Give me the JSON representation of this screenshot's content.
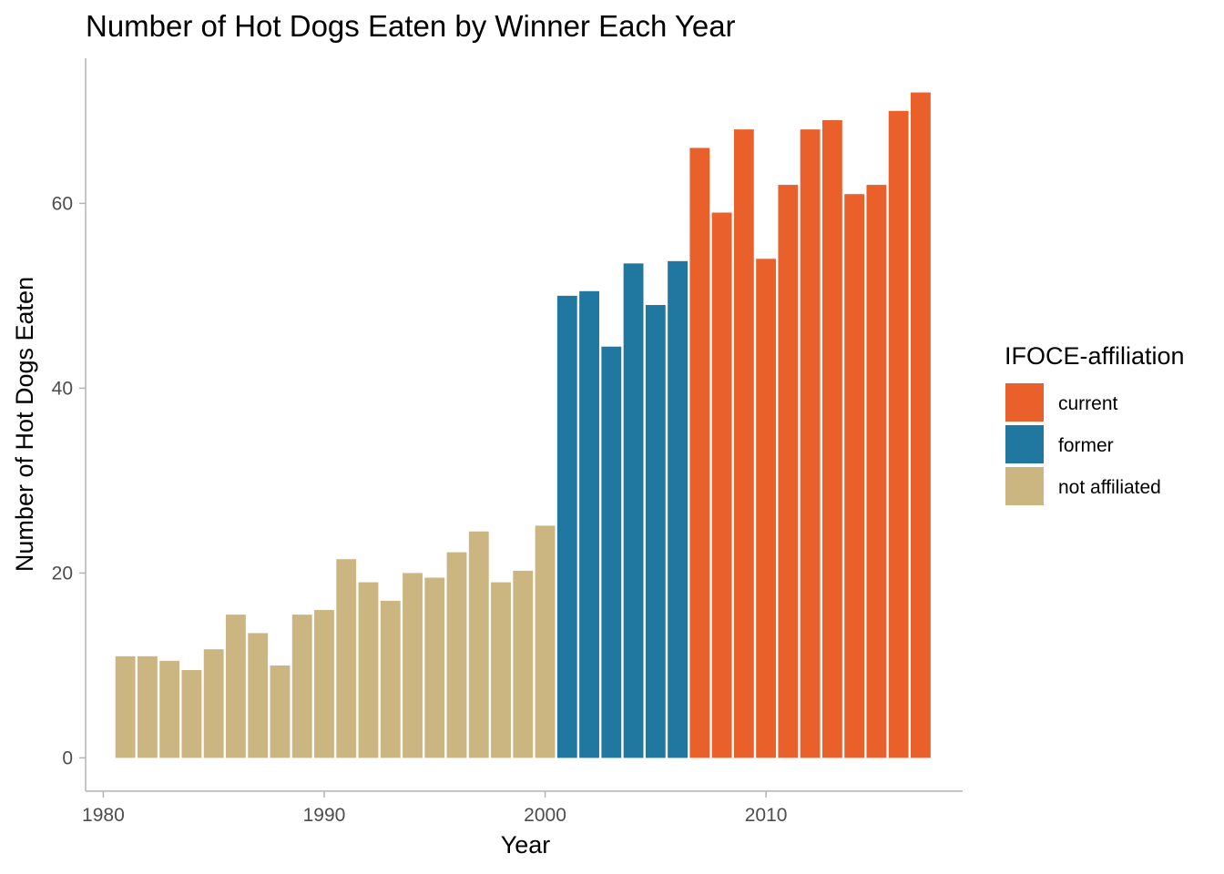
{
  "chart_data": {
    "type": "bar",
    "title": "Number of Hot Dogs Eaten by Winner Each Year",
    "xlabel": "Year",
    "ylabel": "Number of Hot Dogs Eaten",
    "xlim": [
      1979.2,
      2018.9
    ],
    "ylim": [
      -3.6,
      75.7
    ],
    "x_ticks": [
      1980,
      1990,
      2000,
      2010
    ],
    "y_ticks": [
      0,
      20,
      40,
      60
    ],
    "grid": false,
    "legend": {
      "title": "IFOCE-affiliation",
      "position": "right",
      "entries": [
        {
          "name": "current",
          "color": "#E9602B"
        },
        {
          "name": "former",
          "color": "#2077A0"
        },
        {
          "name": "not affiliated",
          "color": "#CBB580"
        }
      ]
    },
    "data": [
      {
        "year": 1981,
        "value": 11,
        "group": "not affiliated"
      },
      {
        "year": 1982,
        "value": 11,
        "group": "not affiliated"
      },
      {
        "year": 1983,
        "value": 10.5,
        "group": "not affiliated"
      },
      {
        "year": 1984,
        "value": 9.5,
        "group": "not affiliated"
      },
      {
        "year": 1985,
        "value": 11.75,
        "group": "not affiliated"
      },
      {
        "year": 1986,
        "value": 15.5,
        "group": "not affiliated"
      },
      {
        "year": 1987,
        "value": 13.5,
        "group": "not affiliated"
      },
      {
        "year": 1988,
        "value": 10,
        "group": "not affiliated"
      },
      {
        "year": 1989,
        "value": 15.5,
        "group": "not affiliated"
      },
      {
        "year": 1990,
        "value": 16,
        "group": "not affiliated"
      },
      {
        "year": 1991,
        "value": 21.5,
        "group": "not affiliated"
      },
      {
        "year": 1992,
        "value": 19,
        "group": "not affiliated"
      },
      {
        "year": 1993,
        "value": 17,
        "group": "not affiliated"
      },
      {
        "year": 1994,
        "value": 20,
        "group": "not affiliated"
      },
      {
        "year": 1995,
        "value": 19.5,
        "group": "not affiliated"
      },
      {
        "year": 1996,
        "value": 22.25,
        "group": "not affiliated"
      },
      {
        "year": 1997,
        "value": 24.5,
        "group": "not affiliated"
      },
      {
        "year": 1998,
        "value": 19,
        "group": "not affiliated"
      },
      {
        "year": 1999,
        "value": 20.25,
        "group": "not affiliated"
      },
      {
        "year": 2000,
        "value": 25.125,
        "group": "not affiliated"
      },
      {
        "year": 2001,
        "value": 50,
        "group": "former"
      },
      {
        "year": 2002,
        "value": 50.5,
        "group": "former"
      },
      {
        "year": 2003,
        "value": 44.5,
        "group": "former"
      },
      {
        "year": 2004,
        "value": 53.5,
        "group": "former"
      },
      {
        "year": 2005,
        "value": 49,
        "group": "former"
      },
      {
        "year": 2006,
        "value": 53.75,
        "group": "former"
      },
      {
        "year": 2007,
        "value": 66,
        "group": "current"
      },
      {
        "year": 2008,
        "value": 59,
        "group": "current"
      },
      {
        "year": 2009,
        "value": 68,
        "group": "current"
      },
      {
        "year": 2010,
        "value": 54,
        "group": "current"
      },
      {
        "year": 2011,
        "value": 62,
        "group": "current"
      },
      {
        "year": 2012,
        "value": 68,
        "group": "current"
      },
      {
        "year": 2013,
        "value": 69,
        "group": "current"
      },
      {
        "year": 2014,
        "value": 61,
        "group": "current"
      },
      {
        "year": 2015,
        "value": 62,
        "group": "current"
      },
      {
        "year": 2016,
        "value": 70,
        "group": "current"
      },
      {
        "year": 2017,
        "value": 72,
        "group": "current"
      }
    ]
  }
}
